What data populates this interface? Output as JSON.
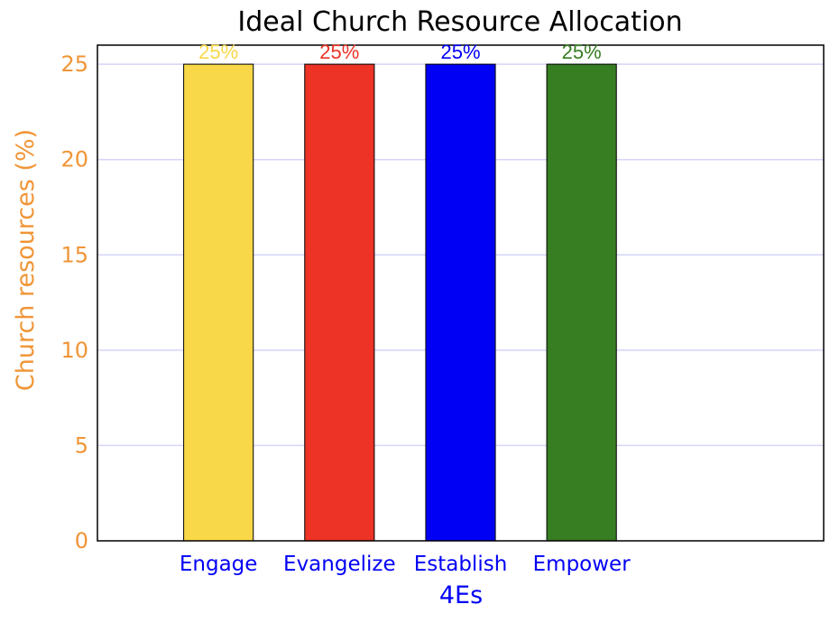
{
  "chart_data": {
    "type": "bar",
    "title": "Ideal Church Resource Allocation",
    "xlabel": "4Es",
    "ylabel": "Church resources (%)",
    "categories": [
      "Engage",
      "Evangelize",
      "Establish",
      "Empower"
    ],
    "values": [
      25,
      25,
      25,
      25
    ],
    "data_labels": [
      "25%",
      "25%",
      "25%",
      "25%"
    ],
    "bar_colors": [
      "#f8d848",
      "#ec3326",
      "#0000f5",
      "#377d22"
    ],
    "ylim": [
      0,
      26
    ],
    "yticks": [
      0,
      5,
      10,
      15,
      20,
      25
    ],
    "grid": true,
    "grid_color": "#d4d4f7",
    "ylabel_color": "#f09537",
    "ytick_color": "#f09537",
    "xlabel_color": "#0000f5",
    "xtick_color": "#0000f5"
  }
}
